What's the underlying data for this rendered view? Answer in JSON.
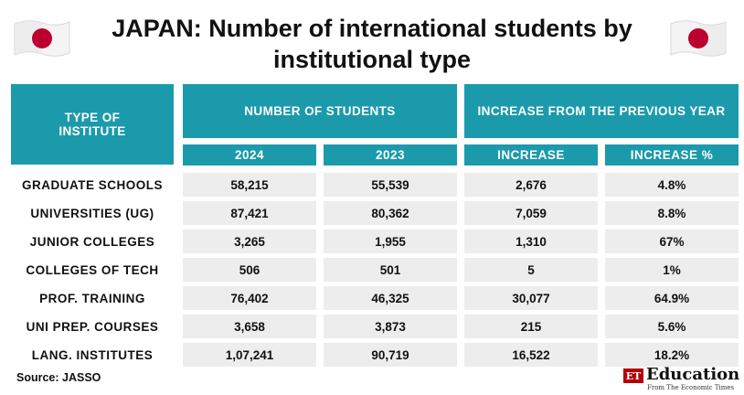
{
  "title": {
    "line1": "JAPAN: Number of international students by",
    "line2": "institutional type"
  },
  "table": {
    "header_type": "TYPE OF INSTITUTE",
    "header_students": "NUMBER OF STUDENTS",
    "header_increase": "INCREASE FROM THE PREVIOUS YEAR",
    "sub_2024": "2024",
    "sub_2023": "2023",
    "sub_increase": "INCREASE",
    "sub_increase_pct": "INCREASE %",
    "rows": [
      {
        "type": "GRADUATE SCHOOLS",
        "y2024": "58,215",
        "y2023": "55,539",
        "increase": "2,676",
        "pct": "4.8%"
      },
      {
        "type": "UNIVERSITIES (UG)",
        "y2024": "87,421",
        "y2023": "80,362",
        "increase": "7,059",
        "pct": "8.8%"
      },
      {
        "type": "JUNIOR COLLEGES",
        "y2024": "3,265",
        "y2023": "1,955",
        "increase": "1,310",
        "pct": "67%"
      },
      {
        "type": "COLLEGES OF TECH",
        "y2024": "506",
        "y2023": "501",
        "increase": "5",
        "pct": "1%"
      },
      {
        "type": "PROF. TRAINING",
        "y2024": "76,402",
        "y2023": "46,325",
        "increase": "30,077",
        "pct": "64.9%"
      },
      {
        "type": "UNI PREP. COURSES",
        "y2024": "3,658",
        "y2023": "3,873",
        "increase": "215",
        "pct": "5.6%"
      },
      {
        "type": "LANG. INSTITUTES",
        "y2024": "1,07,241",
        "y2023": "90,719",
        "increase": "16,522",
        "pct": "18.2%"
      }
    ]
  },
  "source": "Source: JASSO",
  "logo": {
    "et": "ET",
    "name": "Education",
    "tagline": "From The Economic Times"
  },
  "colors": {
    "header_bg": "#1b9aab",
    "cell_bg": "#ededed",
    "flag_red": "#bc002d"
  },
  "icons": [
    "japan-flag-icon",
    "japan-flag-icon"
  ]
}
